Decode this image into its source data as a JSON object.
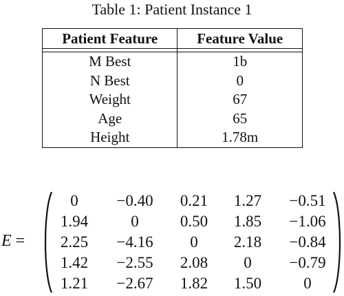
{
  "caption": "Table 1: Patient Instance 1",
  "table": {
    "headers": [
      "Patient Feature",
      "Feature Value"
    ],
    "rows": [
      [
        "M Best",
        "1b"
      ],
      [
        "N Best",
        "0"
      ],
      [
        "Weight",
        "67"
      ],
      [
        "Age",
        "65"
      ],
      [
        "Height",
        "1.78m"
      ]
    ]
  },
  "equation": {
    "lhs": "E",
    "equals": "=",
    "matrix": [
      [
        "0",
        "−0.40",
        "0.21",
        "1.27",
        "−0.51"
      ],
      [
        "1.94",
        "0",
        "0.50",
        "1.85",
        "−1.06"
      ],
      [
        "2.25",
        "−4.16",
        "0",
        "2.18",
        "−0.84"
      ],
      [
        "1.42",
        "−2.55",
        "2.08",
        "0",
        "−0.79"
      ],
      [
        "1.21",
        "−2.67",
        "1.82",
        "1.50",
        "0"
      ]
    ]
  }
}
